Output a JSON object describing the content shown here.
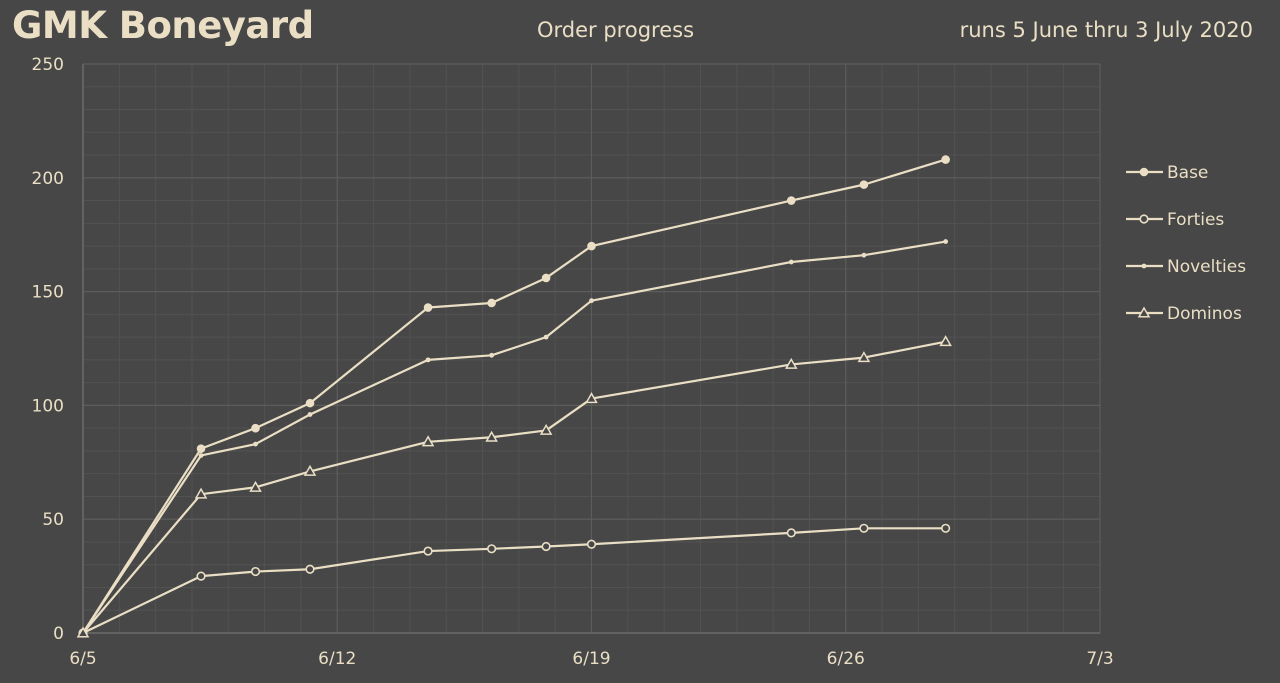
{
  "header": {
    "title": "GMK Boneyard",
    "subtitle": "Order progress",
    "runs": "runs 5 June thru 3 July 2020"
  },
  "colors": {
    "background": "#474747",
    "line": "#eadfc5",
    "grid_major": "#5c5c5c",
    "grid_minor": "#525252"
  },
  "chart_data": {
    "type": "line",
    "title": "Order progress",
    "xlabel": "",
    "ylabel": "",
    "x_tick_labels": [
      "6/5",
      "6/12",
      "6/19",
      "6/26",
      "7/3"
    ],
    "xlim": [
      "2020-06-05",
      "2020-07-03"
    ],
    "ylim": [
      0,
      250
    ],
    "y_ticks": [
      0,
      50,
      100,
      150,
      200,
      250
    ],
    "grid": true,
    "legend": "right",
    "series": [
      {
        "name": "Base",
        "marker": "filled-circle",
        "points": [
          [
            "2020-06-05",
            0
          ],
          [
            "2020-06-08 06:00",
            81
          ],
          [
            "2020-06-09 18:00",
            90
          ],
          [
            "2020-06-11 06:00",
            101
          ],
          [
            "2020-06-14 12:00",
            143
          ],
          [
            "2020-06-16 06:00",
            145
          ],
          [
            "2020-06-17 18:00",
            156
          ],
          [
            "2020-06-19",
            170
          ],
          [
            "2020-06-24 12:00",
            190
          ],
          [
            "2020-06-26 12:00",
            197
          ],
          [
            "2020-06-28 18:00",
            208
          ]
        ]
      },
      {
        "name": "Forties",
        "marker": "open-circle",
        "points": [
          [
            "2020-06-05",
            0
          ],
          [
            "2020-06-08 06:00",
            25
          ],
          [
            "2020-06-09 18:00",
            27
          ],
          [
            "2020-06-11 06:00",
            28
          ],
          [
            "2020-06-14 12:00",
            36
          ],
          [
            "2020-06-16 06:00",
            37
          ],
          [
            "2020-06-17 18:00",
            38
          ],
          [
            "2020-06-19",
            39
          ],
          [
            "2020-06-24 12:00",
            44
          ],
          [
            "2020-06-26 12:00",
            46
          ],
          [
            "2020-06-28 18:00",
            46
          ]
        ]
      },
      {
        "name": "Novelties",
        "marker": "small-dot",
        "points": [
          [
            "2020-06-05",
            0
          ],
          [
            "2020-06-08 06:00",
            78
          ],
          [
            "2020-06-09 18:00",
            83
          ],
          [
            "2020-06-11 06:00",
            96
          ],
          [
            "2020-06-14 12:00",
            120
          ],
          [
            "2020-06-16 06:00",
            122
          ],
          [
            "2020-06-17 18:00",
            130
          ],
          [
            "2020-06-19",
            146
          ],
          [
            "2020-06-24 12:00",
            163
          ],
          [
            "2020-06-26 12:00",
            166
          ],
          [
            "2020-06-28 18:00",
            172
          ]
        ]
      },
      {
        "name": "Dominos",
        "marker": "open-triangle",
        "points": [
          [
            "2020-06-05",
            0
          ],
          [
            "2020-06-08 06:00",
            61
          ],
          [
            "2020-06-09 18:00",
            64
          ],
          [
            "2020-06-11 06:00",
            71
          ],
          [
            "2020-06-14 12:00",
            84
          ],
          [
            "2020-06-16 06:00",
            86
          ],
          [
            "2020-06-17 18:00",
            89
          ],
          [
            "2020-06-19",
            103
          ],
          [
            "2020-06-24 12:00",
            118
          ],
          [
            "2020-06-26 12:00",
            121
          ],
          [
            "2020-06-28 18:00",
            128
          ]
        ]
      }
    ]
  }
}
